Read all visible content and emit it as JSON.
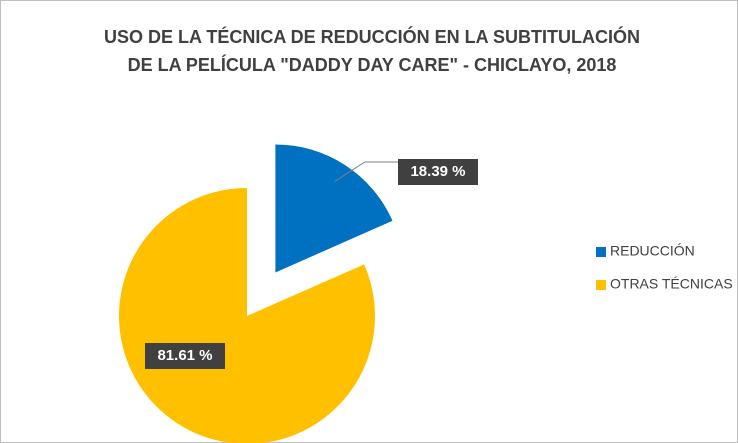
{
  "chart_data": {
    "type": "pie",
    "title": [
      "USO DE LA TÉCNICA DE REDUCCIÓN EN LA SUBTITULACIÓN",
      "DE LA PELÍCULA \"DADDY DAY CARE\" - CHICLAYO, 2018"
    ],
    "categories": [
      "REDUCCIÓN",
      "OTRAS TÉCNICAS"
    ],
    "values": [
      18.39,
      81.61
    ],
    "value_labels": [
      "18.39 %",
      "81.61 %"
    ],
    "colors": [
      "#0070c0",
      "#ffc000"
    ],
    "legend": "right"
  }
}
